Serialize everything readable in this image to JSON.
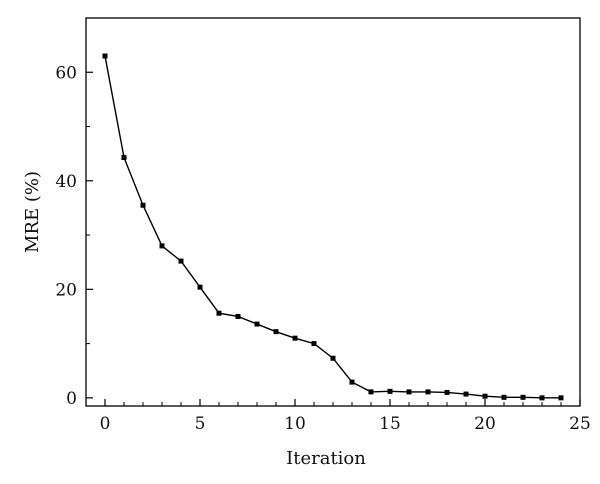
{
  "chart_data": {
    "type": "line",
    "title": "",
    "xlabel": "Iteration",
    "ylabel": "MRE (%)",
    "xlim": [
      -1,
      25
    ],
    "ylim": [
      -1.5,
      70
    ],
    "xticks": [
      0,
      5,
      10,
      15,
      20,
      25
    ],
    "yticks": [
      0,
      20,
      40,
      60
    ],
    "x_minor_step": 1,
    "y_minor_step": 10,
    "grid": false,
    "legend": "none",
    "series": [
      {
        "color": "#000000",
        "marker": "square",
        "x": [
          0,
          1,
          2,
          3,
          4,
          5,
          6,
          7,
          8,
          9,
          10,
          11,
          12,
          13,
          14,
          15,
          16,
          17,
          18,
          19,
          20,
          21,
          22,
          23,
          24
        ],
        "y": [
          63.0,
          44.3,
          35.5,
          28.0,
          25.2,
          20.4,
          15.6,
          15.0,
          13.6,
          12.2,
          11.0,
          10.0,
          7.3,
          2.9,
          1.1,
          1.2,
          1.1,
          1.1,
          1.0,
          0.7,
          0.3,
          0.1,
          0.1,
          0.0,
          0.0
        ]
      }
    ]
  }
}
